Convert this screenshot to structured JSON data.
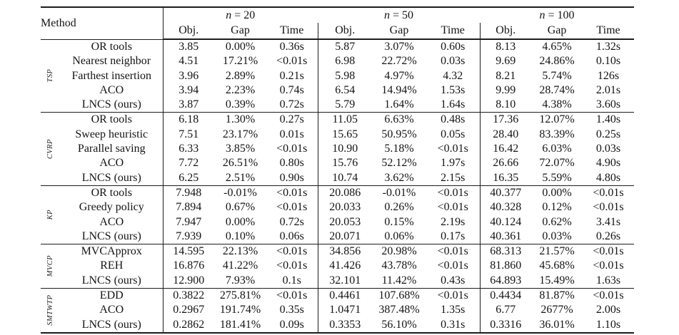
{
  "table": {
    "corner_header": "Method",
    "col_groups": [
      {
        "var": "n",
        "eq": "= 20"
      },
      {
        "var": "n",
        "eq": "= 50"
      },
      {
        "var": "n",
        "eq": "= 100"
      }
    ],
    "sub_headers": [
      "Obj.",
      "Gap",
      "Time"
    ],
    "sections": [
      {
        "group": "TSP",
        "rows": [
          {
            "method": "OR tools",
            "cells": [
              "3.85",
              "0.00%",
              "0.36s",
              "5.87",
              "3.07%",
              "0.60s",
              "8.13",
              "4.65%",
              "1.32s"
            ]
          },
          {
            "method": "Nearest neighbor",
            "cells": [
              "4.51",
              "17.21%",
              "<0.01s",
              "6.98",
              "22.72%",
              "0.03s",
              "9.69",
              "24.86%",
              "0.10s"
            ]
          },
          {
            "method": "Farthest insertion",
            "cells": [
              "3.96",
              "2.89%",
              "0.21s",
              "5.98",
              "4.97%",
              "4.32",
              "8.21",
              "5.74%",
              "126s"
            ]
          },
          {
            "method": "ACO",
            "cells": [
              "3.94",
              "2.23%",
              "0.74s",
              "6.54",
              "14.94%",
              "1.53s",
              "9.99",
              "28.74%",
              "2.01s"
            ]
          },
          {
            "method": "LNCS (ours)",
            "cells": [
              "3.87",
              "0.39%",
              "0.72s",
              "5.79",
              "1.64%",
              "1.64s",
              "8.10",
              "4.38%",
              "3.60s"
            ]
          }
        ]
      },
      {
        "group": "CVRP",
        "rows": [
          {
            "method": "OR tools",
            "cells": [
              "6.18",
              "1.30%",
              "0.27s",
              "11.05",
              "6.63%",
              "0.48s",
              "17.36",
              "12.07%",
              "1.40s"
            ]
          },
          {
            "method": "Sweep heuristic",
            "cells": [
              "7.51",
              "23.17%",
              "0.01s",
              "15.65",
              "50.95%",
              "0.05s",
              "28.40",
              "83.39%",
              "0.25s"
            ]
          },
          {
            "method": "Parallel saving",
            "cells": [
              "6.33",
              "3.85%",
              "<0.01s",
              "10.90",
              "5.18%",
              "<0.01s",
              "16.42",
              "6.03%",
              "0.03s"
            ]
          },
          {
            "method": "ACO",
            "cells": [
              "7.72",
              "26.51%",
              "0.80s",
              "15.76",
              "52.12%",
              "1.97s",
              "26.66",
              "72.07%",
              "4.90s"
            ]
          },
          {
            "method": "LNCS (ours)",
            "cells": [
              "6.25",
              "2.51%",
              "0.90s",
              "10.74",
              "3.62%",
              "2.15s",
              "16.35",
              "5.59%",
              "4.80s"
            ]
          }
        ]
      },
      {
        "group": "KP",
        "rows": [
          {
            "method": "OR tools",
            "cells": [
              "7.948",
              "-0.01%",
              "<0.01s",
              "20.086",
              "-0.01%",
              "<0.01s",
              "40.377",
              "0.00%",
              "<0.01s"
            ]
          },
          {
            "method": "Greedy policy",
            "cells": [
              "7.894",
              "0.67%",
              "<0.01s",
              "20.033",
              "0.26%",
              "<0.01s",
              "40.328",
              "0.12%",
              "<0.01s"
            ]
          },
          {
            "method": "ACO",
            "cells": [
              "7.947",
              "0.00%",
              "0.72s",
              "20.053",
              "0.15%",
              "2.19s",
              "40.124",
              "0.62%",
              "3.41s"
            ]
          },
          {
            "method": "LNCS (ours)",
            "cells": [
              "7.939",
              "0.10%",
              "0.06s",
              "20.071",
              "0.06%",
              "0.17s",
              "40.361",
              "0.03%",
              "0.26s"
            ]
          }
        ]
      },
      {
        "group": "MVCP",
        "rows": [
          {
            "method": "MVCApprox",
            "cells": [
              "14.595",
              "22.13%",
              "<0.01s",
              "34.856",
              "20.98%",
              "<0.01s",
              "68.313",
              "21.57%",
              "<0.01s"
            ]
          },
          {
            "method": "REH",
            "cells": [
              "16.876",
              "41.22%",
              "<0.01s",
              "41.426",
              "43.78%",
              "<0.01s",
              "81.860",
              "45.68%",
              "<0.01s"
            ]
          },
          {
            "method": "LNCS (ours)",
            "cells": [
              "12.900",
              "7.93%",
              "0.1s",
              "32.101",
              "11.42%",
              "0.43s",
              "64.893",
              "15.49%",
              "1.63s"
            ]
          }
        ]
      },
      {
        "group": "SMTWTP",
        "rows": [
          {
            "method": "EDD",
            "cells": [
              "0.3822",
              "275.81%",
              "<0.01s",
              "0.4461",
              "107.68%",
              "<0.01s",
              "0.4434",
              "81.87%",
              "<0.01s"
            ]
          },
          {
            "method": "ACO",
            "cells": [
              "0.2967",
              "191.74%",
              "0.35s",
              "1.0471",
              "387.48%",
              "1.35s",
              "6.77",
              "2677%",
              "2.00s"
            ]
          },
          {
            "method": "LNCS (ours)",
            "cells": [
              "0.2862",
              "181.41%",
              "0.09s",
              "0.3353",
              "56.10%",
              "0.31s",
              "0.3316",
              "36.01%",
              "1.10s"
            ]
          }
        ]
      }
    ]
  }
}
